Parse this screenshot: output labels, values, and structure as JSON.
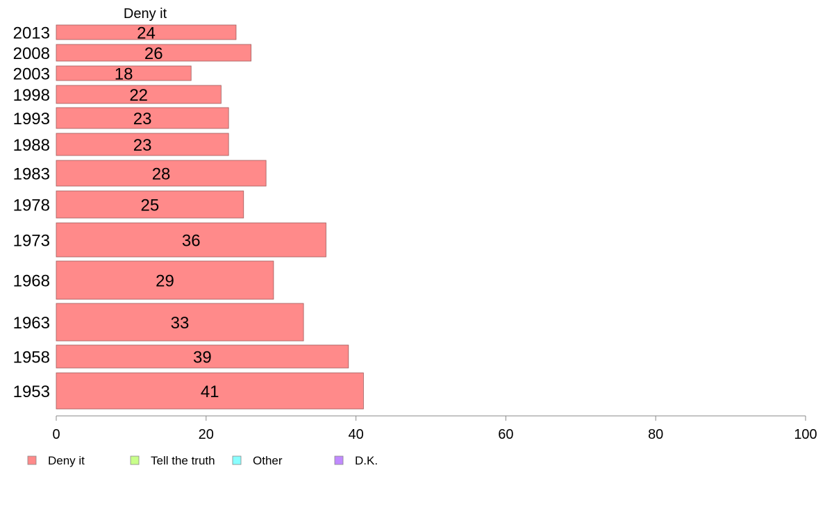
{
  "chart_data": {
    "type": "bar",
    "orientation": "horizontal",
    "title": "Deny it",
    "categories": [
      "2013",
      "2008",
      "2003",
      "1998",
      "1993",
      "1988",
      "1983",
      "1978",
      "1973",
      "1968",
      "1963",
      "1958",
      "1953"
    ],
    "series": [
      {
        "name": "Deny it",
        "values": [
          24,
          26,
          18,
          22,
          23,
          23,
          28,
          25,
          36,
          29,
          33,
          39,
          41
        ],
        "color": "#ff8a8a"
      }
    ],
    "xlim": [
      0,
      100
    ],
    "xticks": [
      "0",
      "20",
      "40",
      "60",
      "80",
      "100"
    ],
    "legend": {
      "placement": "bottom",
      "items": [
        {
          "label": "Deny it",
          "color": "#ff8a8a"
        },
        {
          "label": "Tell the truth",
          "color": "#c8ff8a"
        },
        {
          "label": "Other",
          "color": "#8affff"
        },
        {
          "label": "D.K.",
          "color": "#c08aff"
        }
      ]
    }
  }
}
